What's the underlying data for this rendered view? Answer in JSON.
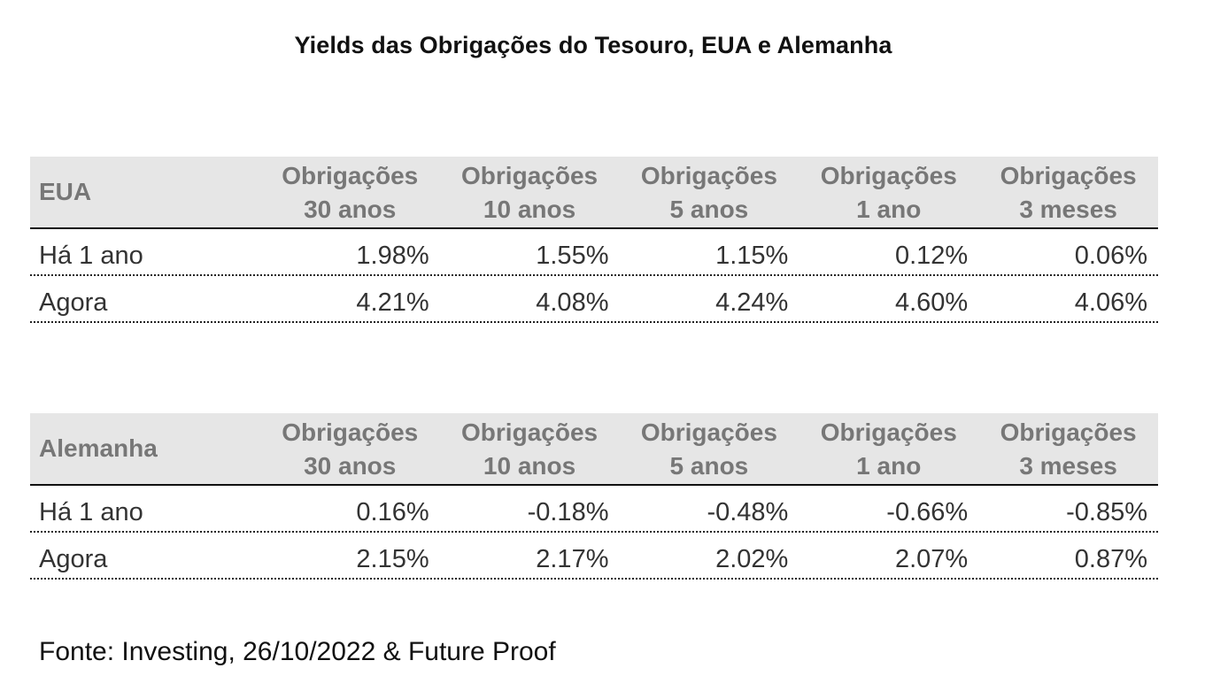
{
  "title": "Yields das Obrigações do Tesouro, EUA e Alemanha",
  "source": "Fonte: Investing, 26/10/2022 & Future Proof",
  "chart_data": [
    {
      "type": "table",
      "country": "EUA",
      "columns": [
        {
          "line1": "Obrigações",
          "line2": "30 anos"
        },
        {
          "line1": "Obrigações",
          "line2": "10 anos"
        },
        {
          "line1": "Obrigações",
          "line2": "5 anos"
        },
        {
          "line1": "Obrigações",
          "line2": "1 ano"
        },
        {
          "line1": "Obrigações",
          "line2": "3 meses"
        }
      ],
      "rows": [
        {
          "label": "Há 1 ano",
          "values": [
            "1.98%",
            "1.55%",
            "1.15%",
            "0.12%",
            "0.06%"
          ]
        },
        {
          "label": "Agora",
          "values": [
            "4.21%",
            "4.08%",
            "4.24%",
            "4.60%",
            "4.06%"
          ]
        }
      ]
    },
    {
      "type": "table",
      "country": "Alemanha",
      "columns": [
        {
          "line1": "Obrigações",
          "line2": "30 anos"
        },
        {
          "line1": "Obrigações",
          "line2": "10 anos"
        },
        {
          "line1": "Obrigações",
          "line2": "5 anos"
        },
        {
          "line1": "Obrigações",
          "line2": "1 ano"
        },
        {
          "line1": "Obrigações",
          "line2": "3 meses"
        }
      ],
      "rows": [
        {
          "label": "Há 1 ano",
          "values": [
            "0.16%",
            "-0.18%",
            "-0.48%",
            "-0.66%",
            "-0.85%"
          ]
        },
        {
          "label": "Agora",
          "values": [
            "2.15%",
            "2.17%",
            "2.02%",
            "2.07%",
            "0.87%"
          ]
        }
      ]
    }
  ]
}
